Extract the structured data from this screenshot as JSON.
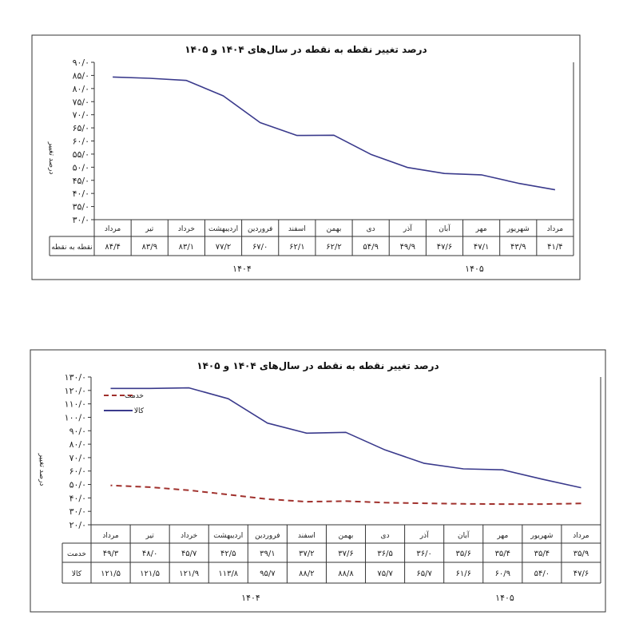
{
  "chart_data": [
    {
      "type": "line",
      "title": "درصد تغییر نقطه به نقطه در سال‌های ۱۴۰۴ و ۱۴۰۵",
      "ylabel": "درصد تغییر",
      "ylim": [
        30,
        90
      ],
      "y_ticks": [
        "۳۰/۰",
        "۳۵/۰",
        "۴۰/۰",
        "۴۵/۰",
        "۵۰/۰",
        "۵۵/۰",
        "۶۰/۰",
        "۶۵/۰",
        "۷۰/۰",
        "۷۵/۰",
        "۸۰/۰",
        "۸۵/۰",
        "۹۰/۰"
      ],
      "categories": [
        "مرداد",
        "شهریور",
        "مهر",
        "آبان",
        "آذر",
        "دی",
        "بهمن",
        "اسفند",
        "فروردین",
        "اردیبهشت",
        "خرداد",
        "تیر",
        "مرداد"
      ],
      "series": [
        {
          "name": "نقطه به نقطه",
          "values": [
            41.4,
            43.9,
            47.1,
            47.6,
            49.9,
            54.9,
            62.2,
            62.1,
            67.0,
            77.2,
            83.1,
            83.9,
            84.4
          ],
          "labels": [
            "۴۱/۴",
            "۴۳/۹",
            "۴۷/۱",
            "۴۷/۶",
            "۴۹/۹",
            "۵۴/۹",
            "۶۲/۲",
            "۶۲/۱",
            "۶۷/۰",
            "۷۷/۲",
            "۸۳/۱",
            "۸۳/۹",
            "۸۴/۴"
          ],
          "color": "#3a3a8c"
        }
      ],
      "years": [
        "۱۴۰۴",
        "۱۴۰۵"
      ],
      "grid": false,
      "legend": "none"
    },
    {
      "type": "line",
      "title": "درصد تغییر نقطه به نقطه در سال‌های ۱۴۰۴ و ۱۴۰۵",
      "ylabel": "درصد تغییر",
      "ylim": [
        20,
        130
      ],
      "y_ticks": [
        "۲۰/۰",
        "۳۰/۰",
        "۴۰/۰",
        "۵۰/۰",
        "۶۰/۰",
        "۷۰/۰",
        "۸۰/۰",
        "۹۰/۰",
        "۱۰۰/۰",
        "۱۱۰/۰",
        "۱۲۰/۰",
        "۱۳۰/۰"
      ],
      "categories": [
        "مرداد",
        "شهریور",
        "مهر",
        "آبان",
        "آذر",
        "دی",
        "بهمن",
        "اسفند",
        "فروردین",
        "اردیبهشت",
        "خرداد",
        "تیر",
        "مرداد"
      ],
      "series": [
        {
          "name": "خدمت",
          "values": [
            35.9,
            35.4,
            35.4,
            35.6,
            36.0,
            36.5,
            37.6,
            37.2,
            39.1,
            42.5,
            45.7,
            48.0,
            49.3
          ],
          "labels": [
            "۳۵/۹",
            "۳۵/۴",
            "۳۵/۴",
            "۳۵/۶",
            "۳۶/۰",
            "۳۶/۵",
            "۳۷/۶",
            "۳۷/۲",
            "۳۹/۱",
            "۴۲/۵",
            "۴۵/۷",
            "۴۸/۰",
            "۴۹/۳"
          ],
          "color": "#a0302c",
          "dashed": true
        },
        {
          "name": "کالا",
          "values": [
            47.6,
            54.0,
            60.9,
            61.6,
            65.7,
            75.7,
            88.8,
            88.2,
            95.7,
            113.8,
            121.9,
            121.5,
            121.5
          ],
          "labels": [
            "۴۷/۶",
            "۵۴/۰",
            "۶۰/۹",
            "۶۱/۶",
            "۶۵/۷",
            "۷۵/۷",
            "۸۸/۸",
            "۸۸/۲",
            "۹۵/۷",
            "۱۱۳/۸",
            "۱۲۱/۹",
            "۱۲۱/۵",
            "۱۲۱/۵"
          ],
          "color": "#3a3a8c",
          "dashed": false
        }
      ],
      "years": [
        "۱۴۰۴",
        "۱۴۰۵"
      ],
      "grid": false,
      "legend": "top-left"
    }
  ]
}
